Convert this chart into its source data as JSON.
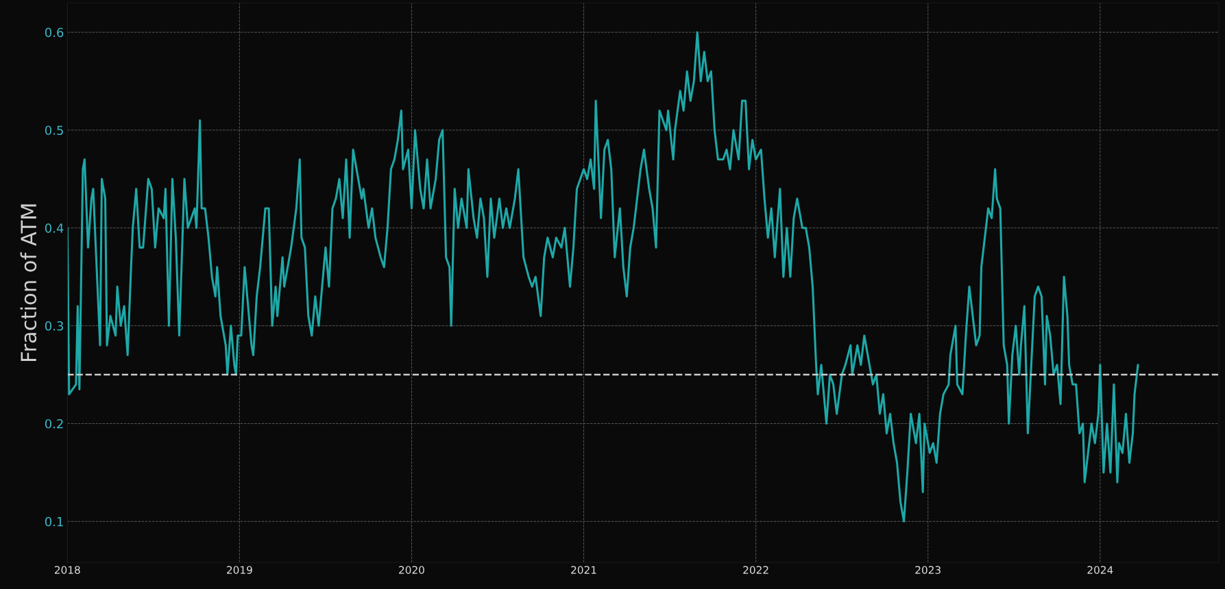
{
  "chart_data": {
    "type": "line",
    "ylabel": "Fraction of ATM",
    "x": [
      2018.0,
      2018.01,
      2018.05,
      2018.06,
      2018.07,
      2018.09,
      2018.1,
      2018.12,
      2018.14,
      2018.15,
      2018.17,
      2018.19,
      2018.2,
      2018.22,
      2018.23,
      2018.25,
      2018.28,
      2018.29,
      2018.31,
      2018.33,
      2018.35,
      2018.37,
      2018.38,
      2018.4,
      2018.42,
      2018.44,
      2018.47,
      2018.49,
      2018.51,
      2018.53,
      2018.56,
      2018.57,
      2018.59,
      2018.61,
      2018.63,
      2018.65,
      2018.68,
      2018.7,
      2018.72,
      2018.74,
      2018.75,
      2018.77,
      2018.78,
      2018.8,
      2018.82,
      2018.84,
      2018.86,
      2018.87,
      2018.89,
      2018.92,
      2018.93,
      2018.95,
      2018.97,
      2018.98,
      2018.99,
      2019.01,
      2019.03,
      2019.05,
      2019.07,
      2019.08,
      2019.1,
      2019.12,
      2019.15,
      2019.17,
      2019.19,
      2019.21,
      2019.22,
      2019.25,
      2019.26,
      2019.28,
      2019.3,
      2019.33,
      2019.35,
      2019.36,
      2019.38,
      2019.4,
      2019.42,
      2019.44,
      2019.46,
      2019.49,
      2019.5,
      2019.52,
      2019.54,
      2019.56,
      2019.58,
      2019.6,
      2019.62,
      2019.64,
      2019.66,
      2019.68,
      2019.71,
      2019.72,
      2019.75,
      2019.77,
      2019.79,
      2019.82,
      2019.84,
      2019.86,
      2019.88,
      2019.9,
      2019.92,
      2019.94,
      2019.95,
      2019.98,
      2020.0,
      2020.02,
      2020.05,
      2020.07,
      2020.09,
      2020.11,
      2020.14,
      2020.16,
      2020.18,
      2020.2,
      2020.22,
      2020.23,
      2020.25,
      2020.27,
      2020.29,
      2020.32,
      2020.33,
      2020.36,
      2020.38,
      2020.4,
      2020.42,
      2020.44,
      2020.46,
      2020.48,
      2020.51,
      2020.53,
      2020.55,
      2020.57,
      2020.6,
      2020.62,
      2020.64,
      2020.65,
      2020.68,
      2020.7,
      2020.72,
      2020.75,
      2020.77,
      2020.79,
      2020.82,
      2020.84,
      2020.87,
      2020.89,
      2020.92,
      2020.94,
      2020.96,
      2020.98,
      2021.0,
      2021.02,
      2021.04,
      2021.06,
      2021.07,
      2021.1,
      2021.12,
      2021.14,
      2021.16,
      2021.18,
      2021.21,
      2021.23,
      2021.25,
      2021.27,
      2021.29,
      2021.31,
      2021.33,
      2021.35,
      2021.38,
      2021.4,
      2021.42,
      2021.44,
      2021.46,
      2021.48,
      2021.49,
      2021.52,
      2021.53,
      2021.56,
      2021.58,
      2021.6,
      2021.62,
      2021.64,
      2021.66,
      2021.68,
      2021.7,
      2021.72,
      2021.74,
      2021.76,
      2021.78,
      2021.81,
      2021.83,
      2021.85,
      2021.87,
      2021.9,
      2021.92,
      2021.94,
      2021.96,
      2021.98,
      2022.0,
      2022.03,
      2022.05,
      2022.07,
      2022.09,
      2022.11,
      2022.14,
      2022.16,
      2022.18,
      2022.2,
      2022.22,
      2022.24,
      2022.27,
      2022.29,
      2022.31,
      2022.33,
      2022.35,
      2022.36,
      2022.38,
      2022.41,
      2022.43,
      2022.45,
      2022.47,
      2022.5,
      2022.52,
      2022.55,
      2022.56,
      2022.59,
      2022.61,
      2022.63,
      2022.65,
      2022.68,
      2022.7,
      2022.72,
      2022.74,
      2022.76,
      2022.78,
      2022.8,
      2022.82,
      2022.84,
      2022.86,
      2022.88,
      2022.9,
      2022.93,
      2022.95,
      2022.97,
      2022.98,
      2023.01,
      2023.03,
      2023.05,
      2023.07,
      2023.09,
      2023.12,
      2023.13,
      2023.16,
      2023.17,
      2023.2,
      2023.22,
      2023.24,
      2023.26,
      2023.28,
      2023.3,
      2023.31,
      2023.33,
      2023.35,
      2023.37,
      2023.39,
      2023.4,
      2023.42,
      2023.44,
      2023.46,
      2023.47,
      2023.49,
      2023.51,
      2023.53,
      2023.54,
      2023.56,
      2023.58,
      2023.6,
      2023.62,
      2023.64,
      2023.66,
      2023.68,
      2023.69,
      2023.71,
      2023.73,
      2023.75,
      2023.77,
      2023.79,
      2023.81,
      2023.82,
      2023.84,
      2023.86,
      2023.88,
      2023.9,
      2023.91,
      2023.93,
      2023.95,
      2023.97,
      2023.99,
      2024.0,
      2024.02,
      2024.04,
      2024.06,
      2024.08,
      2024.1,
      2024.11,
      2024.13,
      2024.15,
      2024.17,
      2024.19,
      2024.2,
      2024.22
    ],
    "series": [
      {
        "color": "#1fa8a8",
        "values": [
          0.4,
          0.23,
          0.24,
          0.32,
          0.235,
          0.46,
          0.47,
          0.38,
          0.43,
          0.44,
          0.36,
          0.28,
          0.45,
          0.43,
          0.28,
          0.31,
          0.29,
          0.34,
          0.3,
          0.32,
          0.27,
          0.36,
          0.4,
          0.44,
          0.38,
          0.38,
          0.45,
          0.44,
          0.38,
          0.42,
          0.41,
          0.44,
          0.3,
          0.45,
          0.39,
          0.29,
          0.45,
          0.4,
          0.41,
          0.42,
          0.4,
          0.51,
          0.42,
          0.42,
          0.39,
          0.35,
          0.33,
          0.36,
          0.31,
          0.28,
          0.25,
          0.3,
          0.26,
          0.25,
          0.29,
          0.29,
          0.36,
          0.32,
          0.28,
          0.27,
          0.33,
          0.36,
          0.42,
          0.42,
          0.3,
          0.34,
          0.31,
          0.37,
          0.34,
          0.36,
          0.38,
          0.42,
          0.47,
          0.39,
          0.38,
          0.31,
          0.29,
          0.33,
          0.3,
          0.36,
          0.38,
          0.34,
          0.42,
          0.43,
          0.45,
          0.41,
          0.47,
          0.39,
          0.48,
          0.46,
          0.43,
          0.44,
          0.4,
          0.42,
          0.39,
          0.37,
          0.36,
          0.4,
          0.46,
          0.47,
          0.49,
          0.52,
          0.46,
          0.48,
          0.42,
          0.5,
          0.44,
          0.42,
          0.47,
          0.42,
          0.45,
          0.49,
          0.5,
          0.37,
          0.36,
          0.3,
          0.44,
          0.4,
          0.43,
          0.4,
          0.46,
          0.41,
          0.39,
          0.43,
          0.41,
          0.35,
          0.43,
          0.39,
          0.43,
          0.4,
          0.42,
          0.4,
          0.43,
          0.46,
          0.4,
          0.37,
          0.35,
          0.34,
          0.35,
          0.31,
          0.37,
          0.39,
          0.37,
          0.39,
          0.38,
          0.4,
          0.34,
          0.38,
          0.44,
          0.45,
          0.46,
          0.45,
          0.47,
          0.44,
          0.53,
          0.41,
          0.48,
          0.49,
          0.46,
          0.37,
          0.42,
          0.36,
          0.33,
          0.38,
          0.4,
          0.43,
          0.46,
          0.48,
          0.44,
          0.42,
          0.38,
          0.52,
          0.51,
          0.5,
          0.52,
          0.47,
          0.5,
          0.54,
          0.52,
          0.56,
          0.53,
          0.55,
          0.6,
          0.55,
          0.58,
          0.55,
          0.56,
          0.5,
          0.47,
          0.47,
          0.48,
          0.46,
          0.5,
          0.47,
          0.53,
          0.53,
          0.46,
          0.49,
          0.47,
          0.48,
          0.43,
          0.39,
          0.42,
          0.37,
          0.44,
          0.35,
          0.4,
          0.35,
          0.41,
          0.43,
          0.4,
          0.4,
          0.38,
          0.34,
          0.26,
          0.23,
          0.26,
          0.2,
          0.25,
          0.24,
          0.21,
          0.25,
          0.26,
          0.28,
          0.25,
          0.28,
          0.26,
          0.29,
          0.27,
          0.24,
          0.25,
          0.21,
          0.23,
          0.19,
          0.21,
          0.18,
          0.16,
          0.12,
          0.1,
          0.15,
          0.21,
          0.18,
          0.21,
          0.13,
          0.2,
          0.17,
          0.18,
          0.16,
          0.21,
          0.23,
          0.24,
          0.27,
          0.3,
          0.24,
          0.23,
          0.29,
          0.34,
          0.31,
          0.28,
          0.29,
          0.36,
          0.39,
          0.42,
          0.41,
          0.46,
          0.43,
          0.42,
          0.28,
          0.26,
          0.2,
          0.27,
          0.3,
          0.25,
          0.28,
          0.32,
          0.19,
          0.26,
          0.33,
          0.34,
          0.33,
          0.24,
          0.31,
          0.29,
          0.25,
          0.26,
          0.22,
          0.35,
          0.31,
          0.26,
          0.24,
          0.24,
          0.19,
          0.2,
          0.14,
          0.17,
          0.2,
          0.18,
          0.21,
          0.26,
          0.15,
          0.2,
          0.15,
          0.24,
          0.14,
          0.18,
          0.17,
          0.21,
          0.16,
          0.19,
          0.23,
          0.26
        ]
      }
    ],
    "xlim": [
      2018,
      2024.69
    ],
    "ylim": [
      0.058,
      0.63
    ],
    "xticks": [
      2018,
      2019,
      2020,
      2021,
      2022,
      2023,
      2024
    ],
    "yticks": [
      0.1,
      0.2,
      0.3,
      0.4,
      0.5,
      0.6
    ],
    "ref_lines": [
      {
        "axis": "y",
        "value": 0.25,
        "color": "#cccccc",
        "line_style": "dashed"
      }
    ],
    "grid": true,
    "marker": "none",
    "line_style": "solid"
  }
}
